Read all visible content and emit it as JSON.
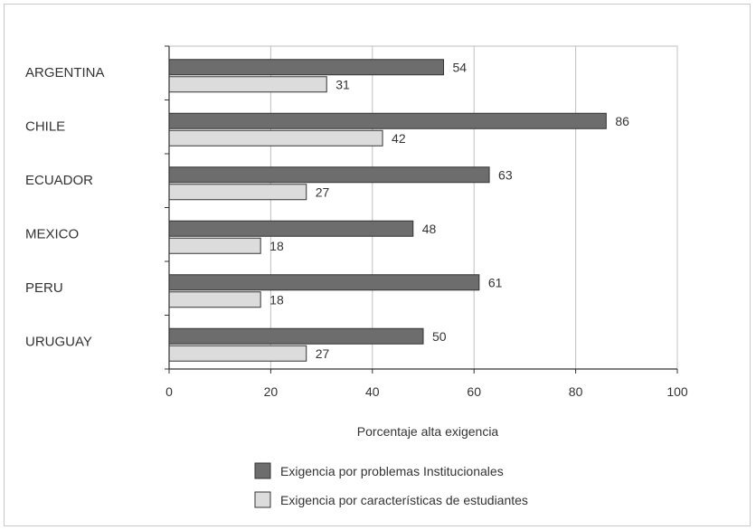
{
  "chart_data": {
    "type": "bar",
    "orientation": "horizontal",
    "categories": [
      "ARGENTINA",
      "CHILE",
      "ECUADOR",
      "MEXICO",
      "PERU",
      "URUGUAY"
    ],
    "series": [
      {
        "name": "Exigencia por problemas Institucionales",
        "values": [
          54,
          86,
          63,
          48,
          61,
          50
        ],
        "color": "#6d6d6d"
      },
      {
        "name": "Exigencia por características de estudiantes",
        "values": [
          31,
          42,
          27,
          18,
          18,
          27
        ],
        "color": "#dcdcdc"
      }
    ],
    "xlabel": "Porcentaje alta exigencia",
    "ylabel": "",
    "xlim": [
      0,
      100
    ],
    "xticks": [
      0,
      20,
      40,
      60,
      80,
      100
    ],
    "grid": "vertical",
    "legend": "bottom"
  }
}
